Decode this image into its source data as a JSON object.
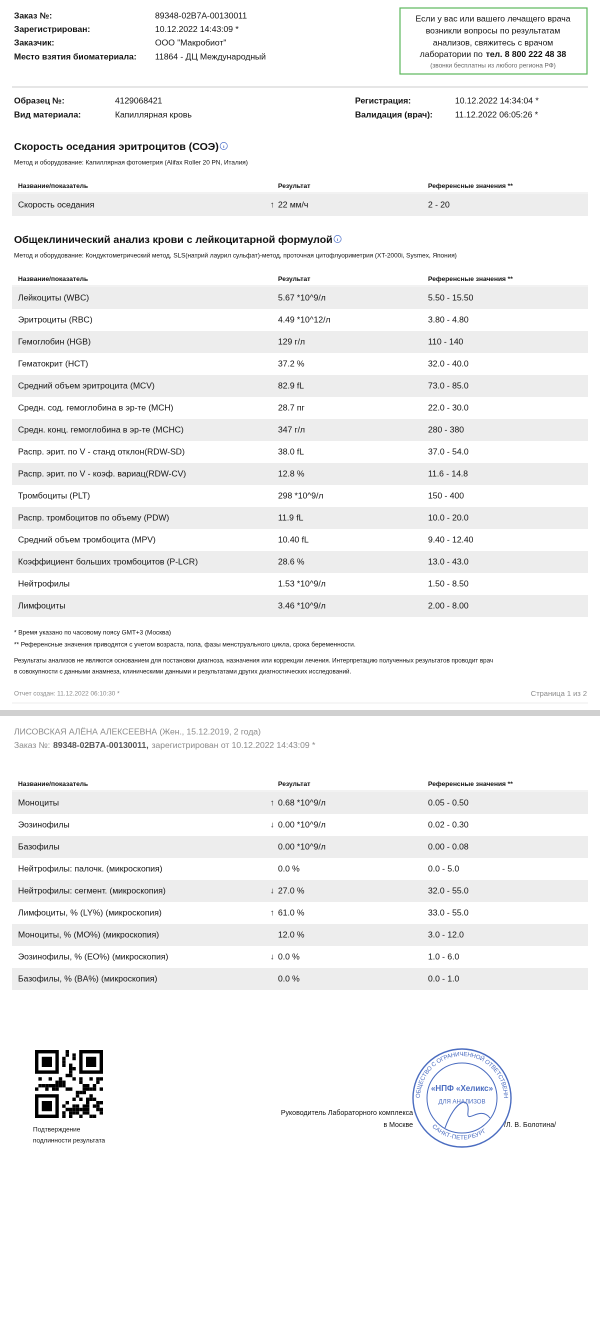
{
  "header": {
    "fields": [
      {
        "label": "Заказ №:",
        "value": "89348-02B7A-00130011"
      },
      {
        "label": "Зарегистрирован:",
        "value": "10.12.2022 14:43:09 *"
      },
      {
        "label": "Заказчик:",
        "value": "ООО \"Макробиот\""
      },
      {
        "label": "Место взятия биоматериала:",
        "value": "11864 - ДЦ Международный"
      }
    ],
    "notice": {
      "lines": [
        "Если у вас или вашего лечащего врача",
        "возникли вопросы по результатам",
        "анализов, свяжитесь с врачом"
      ],
      "phone_prefix": "лаборатории по",
      "phone": "тел. 8 800 222 48 38",
      "note": "(звонки бесплатны из любого региона РФ)"
    }
  },
  "sample": {
    "left": [
      {
        "label": "Образец №:",
        "value": "4129068421"
      },
      {
        "label": "Вид материала:",
        "value": "Капиллярная кровь"
      }
    ],
    "right": [
      {
        "label": "Регистрация:",
        "value": "10.12.2022 14:34:04 *"
      },
      {
        "label": "Валидация (врач):",
        "value": "11.12.2022 06:05:26 *"
      }
    ]
  },
  "columns": {
    "name": "Название/показатель",
    "result": "Результат",
    "ref": "Референсные значения **"
  },
  "sections": [
    {
      "title": "Скорость оседания эритроцитов (СОЭ)",
      "method": "Метод и оборудование: Капиллярная фотометрия (Alifax Roller 20 PN, Италия)",
      "rows": [
        {
          "name": "Скорость оседания",
          "flag": "↑",
          "result": "22 мм/ч",
          "ref": "2 - 20"
        }
      ]
    },
    {
      "title": "Общеклинический анализ крови с лейкоцитарной формулой",
      "method": "Метод и оборудование: Кондуктометрический метод, SLS(натрий лаурил сульфат)-метод, проточная цитофлуориметрия (XT-2000i, Sysmex, Япония)",
      "rows": [
        {
          "name": "Лейкоциты (WBC)",
          "result": "5.67 *10^9/л",
          "ref": "5.50 - 15.50"
        },
        {
          "name": "Эритроциты (RBC)",
          "result": "4.49 *10^12/л",
          "ref": "3.80 - 4.80"
        },
        {
          "name": "Гемоглобин (HGB)",
          "result": "129 г/л",
          "ref": "110 - 140"
        },
        {
          "name": "Гематокрит (HCT)",
          "result": "37.2 %",
          "ref": "32.0 - 40.0"
        },
        {
          "name": "Средний объем эритроцита (MCV)",
          "result": "82.9 fL",
          "ref": "73.0 - 85.0"
        },
        {
          "name": "Средн. сод. гемоглобина в эр-те (MCH)",
          "result": "28.7 пг",
          "ref": "22.0 - 30.0"
        },
        {
          "name": "Средн. конц. гемоглобина в эр-те (MCHC)",
          "result": "347 г/л",
          "ref": "280 - 380"
        },
        {
          "name": "Распр. эрит. по V - станд отклон(RDW-SD)",
          "result": "38.0 fL",
          "ref": "37.0 - 54.0"
        },
        {
          "name": "Распр. эрит. по V - коэф. вариац(RDW-CV)",
          "result": "12.8 %",
          "ref": "11.6 - 14.8"
        },
        {
          "name": "Тромбоциты (PLT)",
          "result": "298 *10^9/л",
          "ref": "150 - 400"
        },
        {
          "name": "Распр. тромбоцитов по объему (PDW)",
          "result": "11.9 fL",
          "ref": "10.0 - 20.0"
        },
        {
          "name": "Средний объем тромбоцита (MPV)",
          "result": "10.40 fL",
          "ref": "9.40 - 12.40"
        },
        {
          "name": "Коэффициент больших тромбоцитов (P-LCR)",
          "result": "28.6 %",
          "ref": "13.0 - 43.0"
        },
        {
          "name": "Нейтрофилы",
          "result": "1.53 *10^9/л",
          "ref": "1.50 - 8.50"
        },
        {
          "name": "Лимфоциты",
          "result": "3.46 *10^9/л",
          "ref": "2.00 - 8.00"
        }
      ]
    }
  ],
  "footnotes": [
    "* Время указано по часовому поясу GMT+3 (Москва)",
    "** Референсные значения приводятся с учетом возраста, пола, фазы менструального цикла, срока беременности."
  ],
  "disclaimer": [
    "Результаты анализов не являются основанием для постановки диагноза, назначения или коррекции лечения. Интерпретацию полученных результатов проводит врач",
    "в совокупности с данными анамнеза, клиническими данными и результатами других диагностических исследований."
  ],
  "footer": {
    "created": "Отчет создан: 11.12.2022 06:10:30 *",
    "page": "Страница 1 из 2"
  },
  "page2": {
    "patient": "ЛИСОВСКАЯ АЛЁНА АЛЕКСЕЕВНА (Жен., 15.12.2019, 2 года)",
    "order_label": "Заказ №:",
    "order_number": "89348-02B7A-00130011,",
    "order_rest": "зарегистрирован от 10.12.2022 14:43:09 *",
    "rows": [
      {
        "name": "Моноциты",
        "flag": "↑",
        "result": "0.68 *10^9/л",
        "ref": "0.05 - 0.50"
      },
      {
        "name": "Эозинофилы",
        "flag": "↓",
        "result": "0.00 *10^9/л",
        "ref": "0.02 - 0.30"
      },
      {
        "name": "Базофилы",
        "result": "0.00 *10^9/л",
        "ref": "0.00 - 0.08"
      },
      {
        "name": "Нейтрофилы: палочк. (микроскопия)",
        "result": "0.0 %",
        "ref": "0.0 - 5.0"
      },
      {
        "name": "Нейтрофилы: сегмент. (микроскопия)",
        "flag": "↓",
        "result": "27.0 %",
        "ref": "32.0 - 55.0"
      },
      {
        "name": "Лимфоциты, % (LY%) (микроскопия)",
        "flag": "↑",
        "result": "61.0 %",
        "ref": "33.0 - 55.0"
      },
      {
        "name": "Моноциты, % (MO%) (микроскопия)",
        "result": "12.0 %",
        "ref": "3.0 - 12.0"
      },
      {
        "name": "Эозинофилы, % (EO%) (микроскопия)",
        "flag": "↓",
        "result": "0.0 %",
        "ref": "1.0 - 6.0"
      },
      {
        "name": "Базофилы, % (BA%) (микроскопия)",
        "result": "0.0 %",
        "ref": "0.0 - 1.0"
      }
    ]
  },
  "signature": {
    "qr_caption": [
      "Подтверждение",
      "подлинности результата"
    ],
    "signer": [
      "Руководитель Лабораторного комплекса",
      "в Москве"
    ],
    "name": "/Л. В. Болотина/",
    "stamp": {
      "top": "ОБЩЕСТВО С ОГРАНИЧЕННОЙ ОТВЕТСТВЕННОСТЬЮ",
      "center": "«НПФ «Хеликс»",
      "sub": "ДЛЯ АНАЛИЗОВ",
      "bottom": "САНКТ-ПЕТЕРБУРГ"
    }
  }
}
